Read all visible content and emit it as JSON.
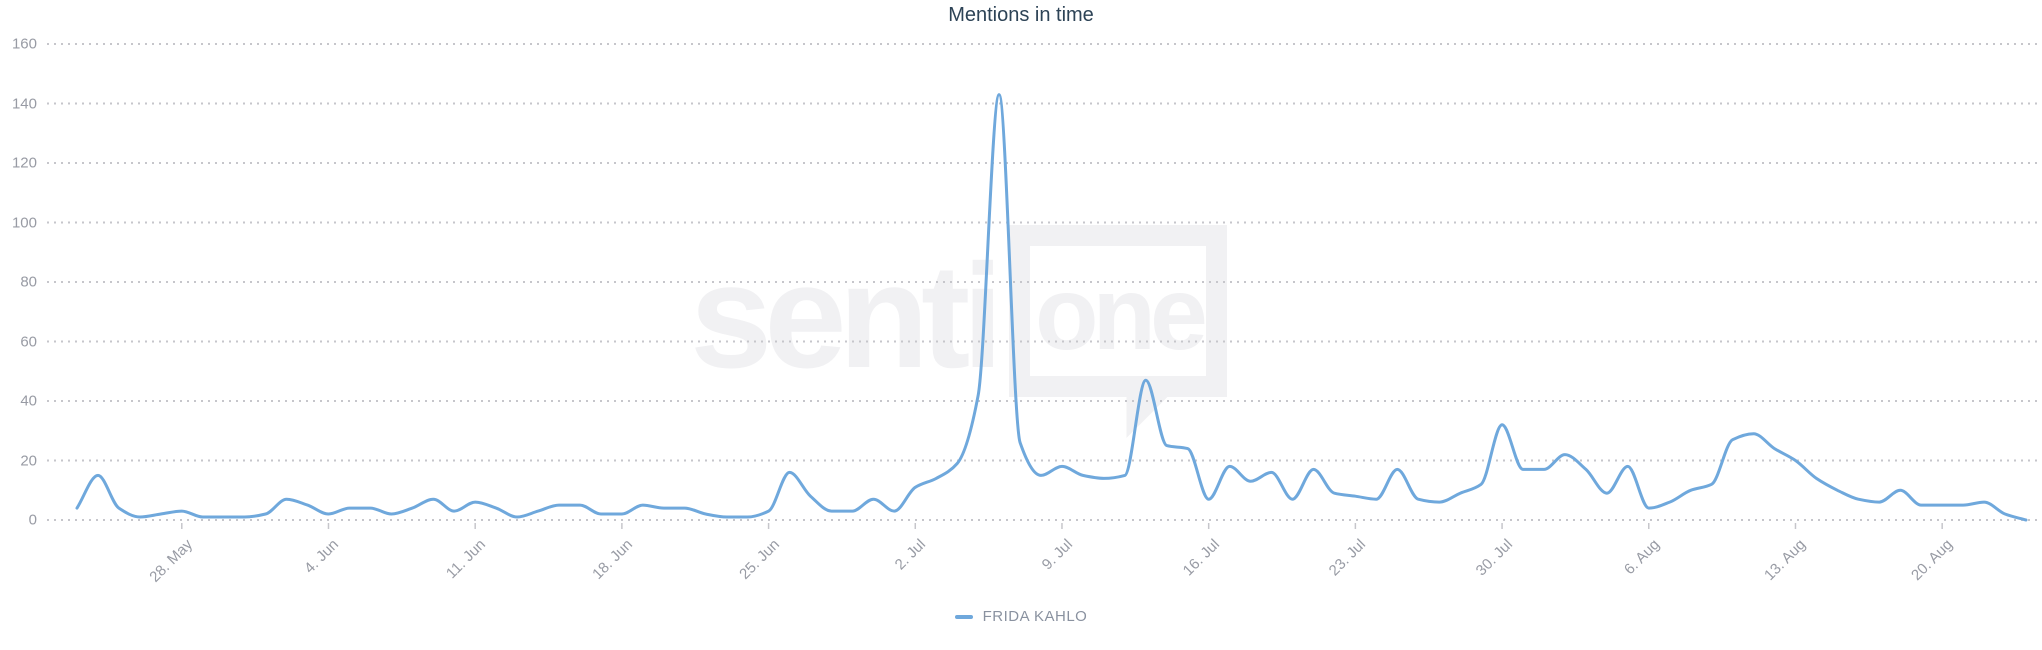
{
  "header": {
    "title": "Mentions in time"
  },
  "watermark": {
    "part1": "senti",
    "part2": "one"
  },
  "legend": {
    "items": [
      {
        "label": "FRIDA KAHLO",
        "color": "#6fa8dc"
      }
    ]
  },
  "colors": {
    "line": "#6fa8dc",
    "title": "#2d4356",
    "axis_labels": "#989ba4",
    "grid_dots": "#c6c6cb",
    "legend_text": "#8a92a0",
    "watermark": "#f1f1f3",
    "background": "#ffffff"
  },
  "chart_data": {
    "type": "line",
    "title": "Mentions in time",
    "xlabel": "",
    "ylabel": "",
    "ylim": [
      0,
      160
    ],
    "y_ticks": [
      0,
      20,
      40,
      60,
      80,
      100,
      120,
      140,
      160
    ],
    "grid": "horizontal dotted",
    "legend_position": "bottom center",
    "x_tick_labels": [
      "28. May",
      "4. Jun",
      "11. Jun",
      "18. Jun",
      "25. Jun",
      "2. Jul",
      "9. Jul",
      "16. Jul",
      "23. Jul",
      "30. Jul",
      "6. Aug",
      "13. Aug",
      "20. Aug"
    ],
    "x_tick_indices": [
      5,
      12,
      19,
      26,
      33,
      40,
      47,
      54,
      61,
      68,
      75,
      82,
      89
    ],
    "series": [
      {
        "name": "FRIDA KAHLO",
        "color": "#6fa8dc",
        "dates": [
          "05-23",
          "05-24",
          "05-25",
          "05-26",
          "05-27",
          "05-28",
          "05-29",
          "05-30",
          "05-31",
          "06-01",
          "06-02",
          "06-03",
          "06-04",
          "06-05",
          "06-06",
          "06-07",
          "06-08",
          "06-09",
          "06-10",
          "06-11",
          "06-12",
          "06-13",
          "06-14",
          "06-15",
          "06-16",
          "06-17",
          "06-18",
          "06-19",
          "06-20",
          "06-21",
          "06-22",
          "06-23",
          "06-24",
          "06-25",
          "06-26",
          "06-27",
          "06-28",
          "06-29",
          "06-30",
          "07-01",
          "07-02",
          "07-03",
          "07-04",
          "07-05",
          "07-06",
          "07-07",
          "07-08",
          "07-09",
          "07-10",
          "07-11",
          "07-12",
          "07-13",
          "07-14",
          "07-15",
          "07-16",
          "07-17",
          "07-18",
          "07-19",
          "07-20",
          "07-21",
          "07-22",
          "07-23",
          "07-24",
          "07-25",
          "07-26",
          "07-27",
          "07-28",
          "07-29",
          "07-30",
          "07-31",
          "08-01",
          "08-02",
          "08-03",
          "08-04",
          "08-05",
          "08-06",
          "08-07",
          "08-08",
          "08-09",
          "08-10",
          "08-11",
          "08-12",
          "08-13",
          "08-14",
          "08-15",
          "08-16",
          "08-17",
          "08-18",
          "08-19",
          "08-20",
          "08-21",
          "08-22",
          "08-23",
          "08-24"
        ],
        "values": [
          4,
          15,
          4,
          1,
          2,
          3,
          1,
          1,
          1,
          2,
          7,
          5,
          2,
          4,
          4,
          2,
          4,
          7,
          3,
          6,
          4,
          1,
          3,
          5,
          5,
          2,
          2,
          5,
          4,
          4,
          2,
          1,
          1,
          3,
          16,
          8,
          3,
          3,
          7,
          3,
          11,
          14,
          19,
          42,
          143,
          26,
          15,
          18,
          15,
          14,
          15,
          47,
          25,
          24,
          7,
          18,
          13,
          16,
          7,
          17,
          9,
          8,
          7,
          17,
          7,
          6,
          9,
          12,
          32,
          17,
          17,
          22,
          17,
          9,
          18,
          4,
          6,
          10,
          12,
          27,
          29,
          24,
          20,
          14,
          10,
          7,
          6,
          10,
          5,
          5,
          5,
          6,
          2,
          0
        ]
      }
    ]
  }
}
